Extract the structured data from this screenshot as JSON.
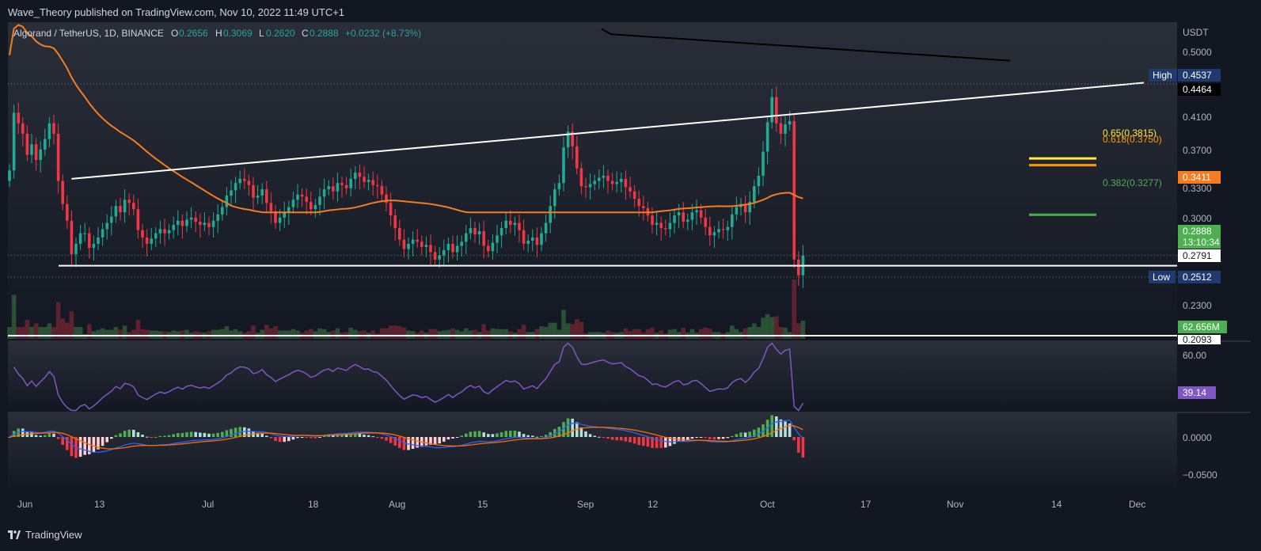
{
  "header": {
    "published": "Wave_Theory published on TradingView.com, Nov 10, 2022 11:49 UTC+1"
  },
  "footer": {
    "brand": "TradingView"
  },
  "legend": {
    "symbol": "Algorand / TetherUS, 1D, BINANCE",
    "o_label": "O",
    "o_value": "0.2656",
    "h_label": "H",
    "h_value": "0.3069",
    "l_label": "L",
    "l_value": "0.2620",
    "c_label": "C",
    "c_value": "0.2888",
    "change": "+0.0232 (+8.73%)"
  },
  "axis": {
    "currency": "USDT",
    "price_ticks": [
      "0.5000",
      "0.4100",
      "0.3700",
      "0.3300",
      "0.3000",
      "0.2300"
    ],
    "rsi_ticks": [
      "60.00"
    ],
    "macd_ticks": [
      "0.0000",
      "−0.0500"
    ],
    "time_ticks": [
      "Jun",
      "13",
      "Jul",
      "18",
      "Aug",
      "15",
      "Sep",
      "12",
      "Oct",
      "17",
      "Nov",
      "14",
      "Dec"
    ]
  },
  "price_labels": {
    "high_tag": "High",
    "high_value": "0.4537",
    "ma200_value": "0.4464",
    "ma50_value": "0.3411",
    "last_value": "0.2888",
    "countdown": "13:10:34",
    "support_value": "0.2791",
    "low_tag": "Low",
    "low_value": "0.2512",
    "volume_value": "62.656M",
    "bottom_line_value": "0.2093",
    "rsi_value": "39.14"
  },
  "fib": [
    {
      "label": "0.65(0.3815)",
      "value": 0.3815,
      "color": "#ffeb3b"
    },
    {
      "label": "0.618(0.3750)",
      "value": 0.375,
      "color": "#ff9800"
    },
    {
      "label": "0.382(0.3277)",
      "value": 0.3277,
      "color": "#4caf50"
    }
  ],
  "colors": {
    "bg": "#131722",
    "up": "#26a69a",
    "up_candle": "#22ab94",
    "down": "#f23645",
    "ma50": "#f57c1f",
    "ma200": "#000000",
    "rsi": "#7e57c2",
    "macd": "#2962ff",
    "signal": "#ff6d00",
    "high_low_tag": "#1e3a6e"
  },
  "chart_data": {
    "type": "candlestick",
    "symbol": "ALGO/USDT",
    "interval": "1D",
    "x_start": "2022-06-01",
    "x_step_days": 1,
    "close": [
      0.37,
      0.425,
      0.415,
      0.405,
      0.385,
      0.395,
      0.38,
      0.39,
      0.4,
      0.415,
      0.405,
      0.36,
      0.338,
      0.322,
      0.29,
      0.3,
      0.31,
      0.31,
      0.296,
      0.3,
      0.306,
      0.314,
      0.32,
      0.326,
      0.336,
      0.33,
      0.342,
      0.339,
      0.333,
      0.313,
      0.306,
      0.3,
      0.305,
      0.31,
      0.314,
      0.31,
      0.313,
      0.318,
      0.322,
      0.317,
      0.323,
      0.325,
      0.321,
      0.318,
      0.32,
      0.316,
      0.322,
      0.328,
      0.335,
      0.346,
      0.351,
      0.358,
      0.362,
      0.36,
      0.356,
      0.344,
      0.346,
      0.352,
      0.339,
      0.331,
      0.32,
      0.325,
      0.33,
      0.335,
      0.342,
      0.347,
      0.345,
      0.34,
      0.333,
      0.337,
      0.345,
      0.352,
      0.355,
      0.35,
      0.358,
      0.356,
      0.353,
      0.362,
      0.368,
      0.364,
      0.359,
      0.361,
      0.356,
      0.355,
      0.347,
      0.339,
      0.327,
      0.315,
      0.304,
      0.295,
      0.3,
      0.304,
      0.302,
      0.297,
      0.299,
      0.292,
      0.285,
      0.289,
      0.294,
      0.3,
      0.292,
      0.298,
      0.302,
      0.31,
      0.315,
      0.309,
      0.312,
      0.298,
      0.293,
      0.301,
      0.308,
      0.315,
      0.322,
      0.318,
      0.32,
      0.313,
      0.3,
      0.303,
      0.306,
      0.299,
      0.31,
      0.32,
      0.336,
      0.352,
      0.358,
      0.392,
      0.407,
      0.393,
      0.372,
      0.355,
      0.354,
      0.357,
      0.36,
      0.363,
      0.365,
      0.36,
      0.357,
      0.359,
      0.362,
      0.354,
      0.35,
      0.343,
      0.336,
      0.334,
      0.327,
      0.318,
      0.32,
      0.315,
      0.314,
      0.32,
      0.327,
      0.33,
      0.321,
      0.323,
      0.33,
      0.332,
      0.325,
      0.316,
      0.308,
      0.311,
      0.314,
      0.313,
      0.316,
      0.328,
      0.335,
      0.338,
      0.33,
      0.34,
      0.355,
      0.365,
      0.388,
      0.416,
      0.44,
      0.415,
      0.405,
      0.414,
      0.417,
      0.285,
      0.27,
      0.2888
    ],
    "open_hint": "each candle opens at the previous candle's close",
    "series": [
      {
        "name": "MA 50",
        "type": "line"
      },
      {
        "name": "MA 200",
        "type": "line"
      },
      {
        "name": "Volume",
        "type": "area"
      },
      {
        "name": "RSI 14",
        "type": "line"
      },
      {
        "name": "MACD 12 26 9",
        "type": "histogram+lines"
      }
    ],
    "ylim": [
      0.2093,
      0.51
    ],
    "horizontal_lines": [
      {
        "value": 0.2791
      },
      {
        "value": 0.2093
      }
    ],
    "trendline": {
      "from": [
        "2022-06-15",
        0.362
      ],
      "to": [
        "2022-11-12",
        0.4537
      ]
    }
  }
}
